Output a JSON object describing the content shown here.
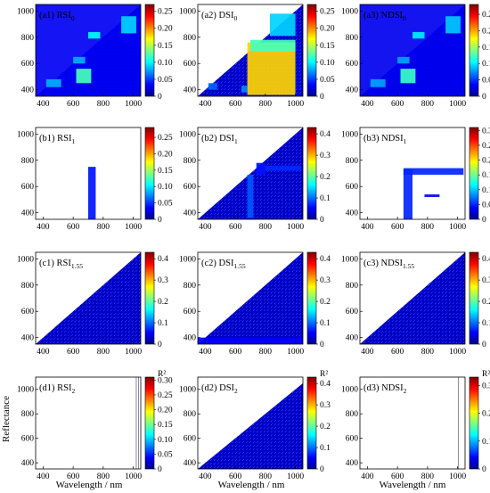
{
  "figure": {
    "ylabel": "Reflectance",
    "xlabel": "Wavelength / nm",
    "colorbar_unit": "R²"
  },
  "chart_data": [
    {
      "type": "heatmap",
      "id": "a1",
      "title": {
        "pre": "(a1) RSI",
        "sub": "0"
      },
      "xlim": [
        350,
        1050
      ],
      "ylim": [
        350,
        1050
      ],
      "xticks": [
        400,
        600,
        800,
        1000
      ],
      "yticks": [
        400,
        600,
        800,
        1000
      ],
      "cbar": {
        "min": 0,
        "max": 0.27,
        "ticks": [
          0,
          0.05,
          0.1,
          0.15,
          0.2,
          0.25
        ],
        "labels": [
          "0",
          "0.05",
          "0.10",
          "0.15",
          "0.20",
          "0.25"
        ]
      },
      "coverage": "triangle",
      "background": 0.02,
      "regions": [
        [
          350,
          1050,
          350,
          1050,
          0.03
        ],
        [
          920,
          1020,
          830,
          960,
          0.09
        ],
        [
          700,
          780,
          790,
          840,
          0.1
        ],
        [
          620,
          720,
          450,
          560,
          0.12
        ],
        [
          600,
          680,
          600,
          650,
          0.08
        ],
        [
          420,
          520,
          420,
          480,
          0.08
        ]
      ]
    },
    {
      "type": "heatmap",
      "id": "a2",
      "title": {
        "pre": "(a2) DSI",
        "sub": "0"
      },
      "xlim": [
        350,
        1050
      ],
      "ylim": [
        350,
        1050
      ],
      "xticks": [
        400,
        600,
        800,
        1000
      ],
      "yticks": [
        400,
        600,
        800,
        1000
      ],
      "cbar": {
        "min": 0,
        "max": 0.27,
        "ticks": [
          0,
          0.05,
          0.1,
          0.15,
          0.2,
          0.25
        ],
        "labels": [
          "0",
          "0.05",
          "0.10",
          "0.15",
          "0.20",
          "0.25"
        ]
      },
      "coverage": "mixed",
      "background": 0.02,
      "regions": [
        [
          680,
          1000,
          360,
          760,
          0.18
        ],
        [
          700,
          1000,
          690,
          780,
          0.12
        ],
        [
          640,
          680,
          380,
          430,
          0.07
        ],
        [
          830,
          1000,
          810,
          980,
          0.09
        ],
        [
          420,
          480,
          400,
          450,
          0.06
        ]
      ]
    },
    {
      "type": "heatmap",
      "id": "a3",
      "title": {
        "pre": "(a3) NDSI",
        "sub": "0"
      },
      "xlim": [
        350,
        1050
      ],
      "ylim": [
        350,
        1050
      ],
      "xticks": [
        400,
        600,
        800,
        1000
      ],
      "yticks": [
        400,
        600,
        800,
        1000
      ],
      "cbar": {
        "min": 0,
        "max": 0.28,
        "ticks": [
          0,
          0.05,
          0.1,
          0.15,
          0.2,
          0.25
        ],
        "labels": [
          "0",
          "0.05",
          "0.10",
          "0.15",
          "0.20",
          "0.25"
        ]
      },
      "coverage": "triangle",
      "background": 0.02,
      "regions": [
        [
          350,
          1050,
          350,
          1050,
          0.03
        ],
        [
          920,
          1020,
          830,
          960,
          0.09
        ],
        [
          700,
          780,
          790,
          840,
          0.1
        ],
        [
          620,
          720,
          450,
          560,
          0.12
        ],
        [
          600,
          680,
          600,
          650,
          0.08
        ],
        [
          420,
          520,
          420,
          480,
          0.08
        ]
      ]
    },
    {
      "type": "heatmap",
      "id": "b1",
      "title": {
        "pre": "(b1) RSI",
        "sub": "1"
      },
      "xlim": [
        350,
        1050
      ],
      "ylim": [
        350,
        1050
      ],
      "xticks": [
        400,
        600,
        800,
        1000
      ],
      "yticks": [
        400,
        600,
        800,
        1000
      ],
      "cbar": {
        "min": 0,
        "max": 0.28,
        "ticks": [
          0,
          0.05,
          0.1,
          0.15,
          0.2,
          0.25
        ],
        "labels": [
          "0",
          "0.05",
          "0.10",
          "0.15",
          "0.20",
          "0.25"
        ]
      },
      "coverage": "regions",
      "background": 0.03,
      "regions": [
        [
          700,
          750,
          340,
          750,
          0.04
        ]
      ]
    },
    {
      "type": "heatmap",
      "id": "b2",
      "title": {
        "pre": "(b2) DSI",
        "sub": "1"
      },
      "xlim": [
        350,
        1050
      ],
      "ylim": [
        350,
        1050
      ],
      "xticks": [
        400,
        600,
        800,
        1000
      ],
      "yticks": [
        400,
        600,
        800,
        1000
      ],
      "cbar": {
        "min": 0,
        "max": 0.43,
        "ticks": [
          0,
          0.1,
          0.2,
          0.3,
          0.4
        ],
        "labels": [
          "0",
          "0.1",
          "0.2",
          "0.3",
          "0.4"
        ]
      },
      "coverage": "triangle",
      "background": 0.03,
      "regions": [
        [
          680,
          720,
          360,
          690,
          0.09
        ],
        [
          760,
          1040,
          720,
          760,
          0.07
        ],
        [
          740,
          800,
          690,
          780,
          0.06
        ]
      ]
    },
    {
      "type": "heatmap",
      "id": "b3",
      "title": {
        "pre": "(b3) NDSI",
        "sub": "1"
      },
      "xlim": [
        350,
        1050
      ],
      "ylim": [
        350,
        1050
      ],
      "xticks": [
        400,
        600,
        800,
        1000
      ],
      "yticks": [
        400,
        600,
        800,
        1000
      ],
      "cbar": {
        "min": 0,
        "max": 0.31,
        "ticks": [
          0,
          0.05,
          0.1,
          0.15,
          0.2,
          0.25,
          0.3
        ],
        "labels": [
          "0",
          "0.05",
          "0.10",
          "0.15",
          "0.20",
          "0.25",
          "0.30"
        ]
      },
      "coverage": "regions",
      "background": 0.03,
      "regions": [
        [
          640,
          700,
          350,
          730,
          0.05
        ],
        [
          640,
          1040,
          690,
          740,
          0.05
        ],
        [
          780,
          880,
          520,
          540,
          0.04
        ]
      ]
    },
    {
      "type": "heatmap",
      "id": "c1",
      "title": {
        "pre": "(c1) RSI",
        "sub": "1.55"
      },
      "xlim": [
        350,
        1050
      ],
      "ylim": [
        350,
        1050
      ],
      "xticks": [
        400,
        600,
        800,
        1000
      ],
      "yticks": [
        400,
        600,
        800,
        1000
      ],
      "cbar": {
        "min": 0,
        "max": 0.43,
        "ticks": [
          0,
          0.1,
          0.2,
          0.3,
          0.4
        ],
        "labels": [
          "0",
          "0.1",
          "0.2",
          "0.3",
          "0.4"
        ]
      },
      "coverage": "triangle",
      "background": 0.03,
      "regions": []
    },
    {
      "type": "heatmap",
      "id": "c2",
      "title": {
        "pre": "(c2) DSI",
        "sub": "1.55"
      },
      "xlim": [
        350,
        1050
      ],
      "ylim": [
        350,
        1050
      ],
      "xticks": [
        400,
        600,
        800,
        1000
      ],
      "yticks": [
        400,
        600,
        800,
        1000
      ],
      "cbar": {
        "min": 0,
        "max": 0.43,
        "ticks": [
          0,
          0.1,
          0.2,
          0.3,
          0.4
        ],
        "labels": [
          "0",
          "0.1",
          "0.2",
          "0.3",
          "0.4"
        ]
      },
      "coverage": "triangle",
      "background": 0.03,
      "regions": [
        [
          350,
          1050,
          350,
          400,
          0.05
        ]
      ]
    },
    {
      "type": "heatmap",
      "id": "c3",
      "title": {
        "pre": "(c3) NDSI",
        "sub": "1.55"
      },
      "xlim": [
        350,
        1050
      ],
      "ylim": [
        350,
        1050
      ],
      "xticks": [
        400,
        600,
        800,
        1000
      ],
      "yticks": [
        400,
        600,
        800,
        1000
      ],
      "cbar": {
        "min": 0,
        "max": 0.43,
        "ticks": [
          0,
          0.1,
          0.2,
          0.3,
          0.4
        ],
        "labels": [
          "0",
          "0.1",
          "0.2",
          "0.3",
          "0.4"
        ]
      },
      "coverage": "triangle",
      "background": 0.03,
      "regions": []
    },
    {
      "type": "heatmap",
      "id": "d1",
      "title": {
        "pre": "(d1) RSI",
        "sub": "2"
      },
      "xlim": [
        350,
        1050
      ],
      "ylim": [
        350,
        1100
      ],
      "xticks": [
        400,
        600,
        800,
        1000
      ],
      "yticks": [
        400,
        600,
        800,
        1000
      ],
      "cbar": {
        "min": 0,
        "max": 0.31,
        "ticks": [
          0,
          0.05,
          0.1,
          0.15,
          0.2,
          0.25,
          0.3
        ],
        "labels": [
          "0",
          "0.05",
          "0.10",
          "0.15",
          "0.20",
          "0.25",
          "0.30"
        ],
        "unit": "R²"
      },
      "coverage": "lines",
      "background": 0.02,
      "lines": [
        1020,
        1035
      ]
    },
    {
      "type": "heatmap",
      "id": "d2",
      "title": {
        "pre": "(d2) DSI",
        "sub": "2"
      },
      "xlim": [
        350,
        1050
      ],
      "ylim": [
        350,
        1100
      ],
      "xticks": [
        400,
        600,
        800,
        1000
      ],
      "yticks": [
        400,
        600,
        800,
        1000
      ],
      "cbar": {
        "min": 0,
        "max": 0.43,
        "ticks": [
          0,
          0.1,
          0.2,
          0.3,
          0.4
        ],
        "labels": [
          "0",
          "0.1",
          "0.2",
          "0.3",
          "0.4"
        ],
        "unit": "R²"
      },
      "coverage": "triangle",
      "background": 0.03,
      "regions": []
    },
    {
      "type": "heatmap",
      "id": "d3",
      "title": {
        "pre": "(d3) NDSI",
        "sub": "2"
      },
      "xlim": [
        350,
        1050
      ],
      "ylim": [
        350,
        1100
      ],
      "xticks": [
        400,
        600,
        800,
        1000
      ],
      "yticks": [
        400,
        600,
        800,
        1000
      ],
      "cbar": {
        "min": 0,
        "max": 0.33,
        "ticks": [
          0,
          0.1,
          0.2,
          0.3
        ],
        "labels": [
          "0",
          "0.10",
          "0.20",
          "0.30"
        ],
        "unit": "R²"
      },
      "coverage": "lines",
      "background": 0.02,
      "lines": [
        1005
      ]
    }
  ]
}
